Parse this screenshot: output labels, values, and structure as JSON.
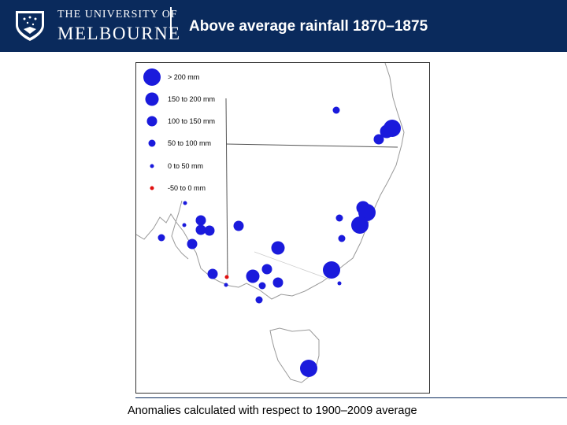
{
  "header": {
    "logo_line1": "THE UNIVERSITY OF",
    "logo_line2": "MELBOURNE",
    "title": "Above average rainfall 1870–1875"
  },
  "legend": {
    "items": [
      {
        "label": "> 200 mm",
        "color": "#1a1adc"
      },
      {
        "label": "150 to 200 mm",
        "color": "#1a1adc"
      },
      {
        "label": "100 to 150 mm",
        "color": "#1a1adc"
      },
      {
        "label": "50 to 100 mm",
        "color": "#1a1adc"
      },
      {
        "label": "0 to 50 mm",
        "color": "#1a1adc"
      },
      {
        "label": "-50 to 0 mm",
        "color": "#e01010"
      }
    ]
  },
  "caption": "Anomalies calculated with respect to 1900–2009 average",
  "colors": {
    "header_bg": "#0a2a5c",
    "positive": "#1a1adc",
    "negative": "#e01010"
  }
}
